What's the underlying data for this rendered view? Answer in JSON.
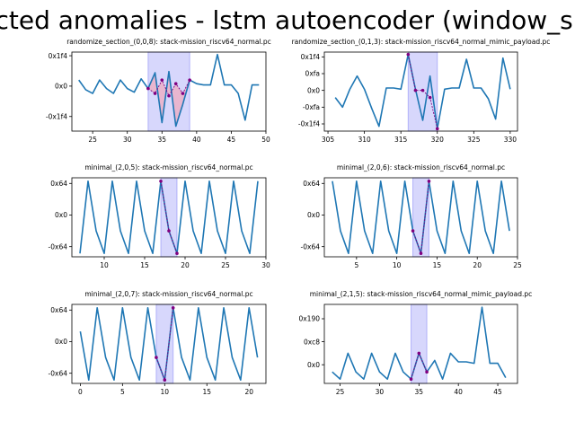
{
  "figure": {
    "title": "cted anomalies - lstm autoencoder (window_si",
    "colors": {
      "line": "#1f77b4",
      "highlight_fill": "#7b7bf5",
      "marker": "#800080",
      "marker_line": "#800080",
      "pink_fill": "#f4a0b0"
    }
  },
  "chart_data": [
    {
      "type": "line",
      "title": "randomize_section_(0,0,8): stack-mission_riscv64_normal.pc",
      "xlim": [
        22,
        50
      ],
      "ylim": [
        -0.37,
        0.28
      ],
      "xticks": [
        {
          "v": 25,
          "label": "25"
        },
        {
          "v": 30,
          "label": "30"
        },
        {
          "v": 35,
          "label": "35"
        },
        {
          "v": 40,
          "label": "40"
        },
        {
          "v": 45,
          "label": "45"
        },
        {
          "v": 50,
          "label": "50"
        }
      ],
      "yticks": [
        {
          "v": 0.25,
          "label": "0x1f4"
        },
        {
          "v": 0,
          "label": "0x0"
        },
        {
          "v": -0.25,
          "label": "-0x1f4"
        }
      ],
      "x": [
        23,
        24,
        25,
        26,
        27,
        28,
        29,
        30,
        31,
        32,
        33,
        34,
        35,
        36,
        37,
        38,
        39,
        40,
        41,
        42,
        43,
        44,
        45,
        46,
        47,
        48,
        49
      ],
      "y": [
        0.05,
        -0.03,
        -0.06,
        0.05,
        -0.02,
        -0.06,
        0.05,
        -0.02,
        -0.05,
        0.06,
        -0.02,
        0.11,
        -0.3,
        0.12,
        -0.33,
        -0.15,
        0.05,
        0.02,
        0.01,
        0.01,
        0.26,
        0.01,
        0.01,
        -0.06,
        -0.28,
        0.01,
        0.01
      ],
      "highlight": [
        33,
        39
      ],
      "recon": {
        "x": [
          33,
          34,
          35,
          36,
          37,
          38,
          39
        ],
        "y": [
          -0.02,
          -0.06,
          0.05,
          -0.08,
          0.02,
          -0.06,
          0.05
        ]
      },
      "pink": true
    },
    {
      "type": "line",
      "title": "randomize_section_(0,1,3): stack-mission_riscv64_normal_mimic_payload.pc",
      "xlim": [
        304.5,
        331
      ],
      "ylim": [
        -0.34,
        0.32
      ],
      "xticks": [
        {
          "v": 305,
          "label": "305"
        },
        {
          "v": 310,
          "label": "310"
        },
        {
          "v": 315,
          "label": "315"
        },
        {
          "v": 320,
          "label": "320"
        },
        {
          "v": 325,
          "label": "325"
        },
        {
          "v": 330,
          "label": "330"
        }
      ],
      "yticks": [
        {
          "v": 0.28,
          "label": "0x1f4"
        },
        {
          "v": 0.14,
          "label": "0xfa"
        },
        {
          "v": 0,
          "label": "0x0"
        },
        {
          "v": -0.14,
          "label": "-0xfa"
        },
        {
          "v": -0.28,
          "label": "-0x1f4"
        }
      ],
      "x": [
        306,
        307,
        308,
        309,
        310,
        311,
        312,
        313,
        314,
        315,
        316,
        317,
        318,
        319,
        320,
        321,
        322,
        323,
        324,
        325,
        326,
        327,
        328,
        329,
        330
      ],
      "y": [
        -0.06,
        -0.14,
        0.01,
        0.12,
        0.01,
        -0.15,
        -0.3,
        0.02,
        0.02,
        0.01,
        0.3,
        0.01,
        -0.25,
        0.12,
        -0.32,
        0.01,
        0.02,
        0.02,
        0.26,
        0.02,
        0.02,
        -0.07,
        -0.24,
        0.27,
        0.01
      ],
      "highlight": [
        316,
        320
      ],
      "recon": {
        "x": [
          316,
          317,
          318,
          319,
          320
        ],
        "y": [
          0.3,
          0.0,
          0.0,
          -0.06,
          -0.32
        ]
      },
      "pink": false
    },
    {
      "type": "line",
      "title": "minimal_(2,0,5): stack-mission_riscv64_normal.pc",
      "xlim": [
        6,
        30
      ],
      "ylim": [
        -0.37,
        0.33
      ],
      "xticks": [
        {
          "v": 10,
          "label": "10"
        },
        {
          "v": 15,
          "label": "15"
        },
        {
          "v": 20,
          "label": "20"
        },
        {
          "v": 25,
          "label": "25"
        },
        {
          "v": 30,
          "label": "30"
        }
      ],
      "yticks": [
        {
          "v": 0.28,
          "label": "0x64"
        },
        {
          "v": 0,
          "label": "0x0"
        },
        {
          "v": -0.28,
          "label": "-0x64"
        }
      ],
      "x": [
        7,
        8,
        9,
        10,
        11,
        12,
        13,
        14,
        15,
        16,
        17,
        18,
        19,
        20,
        21,
        22,
        23,
        24,
        25,
        26,
        27,
        28,
        29
      ],
      "y": [
        -0.34,
        0.3,
        -0.14,
        -0.34,
        0.3,
        -0.14,
        -0.34,
        0.3,
        -0.14,
        -0.34,
        0.3,
        -0.14,
        -0.34,
        0.3,
        -0.14,
        -0.34,
        0.3,
        -0.14,
        -0.34,
        0.3,
        -0.14,
        -0.34,
        0.3
      ],
      "highlight": [
        17,
        19
      ],
      "recon": {
        "x": [
          17,
          18,
          19
        ],
        "y": [
          0.3,
          -0.14,
          -0.34
        ]
      },
      "pink": false
    },
    {
      "type": "line",
      "title": "minimal_(2,0,6): stack-mission_riscv64_normal.pc",
      "xlim": [
        1,
        25
      ],
      "ylim": [
        -0.37,
        0.33
      ],
      "xticks": [
        {
          "v": 5,
          "label": "5"
        },
        {
          "v": 10,
          "label": "10"
        },
        {
          "v": 15,
          "label": "15"
        },
        {
          "v": 20,
          "label": "20"
        },
        {
          "v": 25,
          "label": "25"
        }
      ],
      "yticks": [
        {
          "v": 0.28,
          "label": "0x64"
        },
        {
          "v": 0,
          "label": "0x0"
        },
        {
          "v": -0.28,
          "label": "-0x64"
        }
      ],
      "x": [
        2,
        3,
        4,
        5,
        6,
        7,
        8,
        9,
        10,
        11,
        12,
        13,
        14,
        15,
        16,
        17,
        18,
        19,
        20,
        21,
        22,
        23,
        24
      ],
      "y": [
        0.3,
        -0.14,
        -0.34,
        0.3,
        -0.14,
        -0.34,
        0.3,
        -0.14,
        -0.34,
        0.3,
        -0.14,
        -0.34,
        0.3,
        -0.14,
        -0.34,
        0.3,
        -0.14,
        -0.34,
        0.3,
        -0.14,
        -0.34,
        0.3,
        -0.14
      ],
      "highlight": [
        12,
        14
      ],
      "recon": {
        "x": [
          12,
          13,
          14
        ],
        "y": [
          -0.14,
          -0.34,
          0.3
        ]
      },
      "pink": false
    },
    {
      "type": "line",
      "title": "minimal_(2,0,7): stack-mission_riscv64_normal.pc",
      "xlim": [
        -1,
        22
      ],
      "ylim": [
        -0.37,
        0.33
      ],
      "xticks": [
        {
          "v": 0,
          "label": "0"
        },
        {
          "v": 5,
          "label": "5"
        },
        {
          "v": 10,
          "label": "10"
        },
        {
          "v": 15,
          "label": "15"
        },
        {
          "v": 20,
          "label": "20"
        }
      ],
      "yticks": [
        {
          "v": 0.28,
          "label": "0x64"
        },
        {
          "v": 0,
          "label": "0x0"
        },
        {
          "v": -0.28,
          "label": "-0x64"
        }
      ],
      "x": [
        0,
        1,
        2,
        3,
        4,
        5,
        6,
        7,
        8,
        9,
        10,
        11,
        12,
        13,
        14,
        15,
        16,
        17,
        18,
        19,
        20,
        21
      ],
      "y": [
        0.09,
        -0.34,
        0.3,
        -0.14,
        -0.34,
        0.3,
        -0.14,
        -0.34,
        0.3,
        -0.14,
        -0.34,
        0.3,
        -0.14,
        -0.34,
        0.3,
        -0.14,
        -0.34,
        0.3,
        -0.14,
        -0.34,
        0.3,
        -0.14
      ],
      "highlight": [
        9,
        11
      ],
      "recon": {
        "x": [
          9,
          10,
          11
        ],
        "y": [
          -0.14,
          -0.34,
          0.3
        ]
      },
      "pink": false
    },
    {
      "type": "line",
      "title": "minimal_(2,1,5): stack-mission_riscv64_normal_mimic_payload.pc",
      "xlim": [
        23,
        47.5
      ],
      "ylim": [
        -0.13,
        0.42
      ],
      "xticks": [
        {
          "v": 25,
          "label": "25"
        },
        {
          "v": 30,
          "label": "30"
        },
        {
          "v": 35,
          "label": "35"
        },
        {
          "v": 40,
          "label": "40"
        },
        {
          "v": 45,
          "label": "45"
        }
      ],
      "yticks": [
        {
          "v": 0.32,
          "label": "0x190"
        },
        {
          "v": 0.16,
          "label": "0xc8"
        },
        {
          "v": 0,
          "label": "0x0"
        }
      ],
      "x": [
        24,
        25,
        26,
        27,
        28,
        29,
        30,
        31,
        32,
        33,
        34,
        35,
        36,
        37,
        38,
        39,
        40,
        41,
        42,
        43,
        44,
        45,
        46
      ],
      "y": [
        -0.05,
        -0.1,
        0.08,
        -0.05,
        -0.1,
        0.08,
        -0.05,
        -0.1,
        0.08,
        -0.05,
        -0.1,
        0.08,
        -0.05,
        0.03,
        -0.1,
        0.08,
        0.02,
        0.02,
        0.01,
        0.4,
        0.01,
        0.01,
        -0.09
      ],
      "highlight": [
        34,
        36
      ],
      "recon": {
        "x": [
          34,
          35,
          36
        ],
        "y": [
          -0.1,
          0.08,
          -0.05
        ]
      },
      "pink": false
    }
  ]
}
